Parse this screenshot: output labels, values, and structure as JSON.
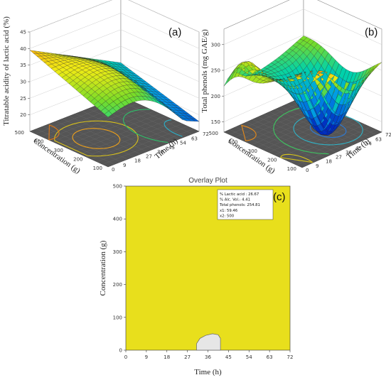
{
  "chart_data": [
    {
      "panel_label": "(a)",
      "type": "surface3d",
      "zlabel": "Titratable acidity of lactic acid (%)",
      "xlabel": "Time (h)",
      "ylabel": "Concentration (g)",
      "x_ticks": [
        "0",
        "9",
        "18",
        "27",
        "36",
        "45",
        "54",
        "63",
        "72"
      ],
      "y_ticks": [
        "100",
        "200",
        "300",
        "400",
        "500"
      ],
      "z_ticks": [
        "20",
        "25",
        "30",
        "35",
        "40",
        "45"
      ],
      "xlim": [
        0,
        72
      ],
      "ylim": [
        100,
        500
      ],
      "zlim": [
        15,
        45
      ],
      "corner_values": {
        "t0_c500": 39.5,
        "t0_c100": 30,
        "t72_c500": 25,
        "t72_c100": 18
      },
      "peak": {
        "t": 30,
        "c": 300,
        "z": 36
      },
      "contours": "yes",
      "colormap": "blue-green-yellow-red"
    },
    {
      "panel_label": "(b)",
      "type": "surface3d",
      "zlabel": "Total phenols (mg GAE/g)",
      "xlabel": "Time (h)",
      "ylabel": "Concentration (g)",
      "x_ticks": [
        "0",
        "9",
        "18",
        "27",
        "36",
        "45",
        "54",
        "63",
        "72"
      ],
      "y_ticks": [
        "100",
        "200",
        "300",
        "400",
        "500"
      ],
      "z_ticks": [
        "150",
        "200",
        "250",
        "300"
      ],
      "xlim": [
        0,
        72
      ],
      "ylim": [
        100,
        500
      ],
      "zlim": [
        130,
        330
      ],
      "corner_values": {
        "t0_c500": 200,
        "t0_c100": 315,
        "t72_c500": 250,
        "t72_c100": 280
      },
      "minimum": {
        "t": 50,
        "c": 250,
        "z": 140
      },
      "contours": "yes",
      "colormap": "blue-green-yellow-red"
    },
    {
      "panel_label": "(c)",
      "type": "overlay",
      "title": "Overlay Plot",
      "xlabel": "Time (h)",
      "ylabel": "Concentration (g)",
      "x_ticks": [
        0,
        9,
        18,
        27,
        36,
        45,
        54,
        63,
        72
      ],
      "y_ticks": [
        0,
        100,
        200,
        300,
        400,
        500
      ],
      "xlim": [
        0,
        72
      ],
      "ylim": [
        0,
        500
      ],
      "fill_color": "#e8df1c",
      "region_color": "#e6e6e6",
      "grey_region": [
        [
          31,
          0
        ],
        [
          31,
          20
        ],
        [
          32.5,
          36
        ],
        [
          35,
          45
        ],
        [
          38,
          50
        ],
        [
          40.5,
          47
        ],
        [
          41.5,
          36
        ],
        [
          41.5,
          0
        ]
      ],
      "legend": [
        "% Lactic acid : 26.67",
        "% Alc. Vol.: 4.41",
        "Total phenols: 254.81",
        "x1: 59.46",
        "x2: 500"
      ]
    }
  ]
}
